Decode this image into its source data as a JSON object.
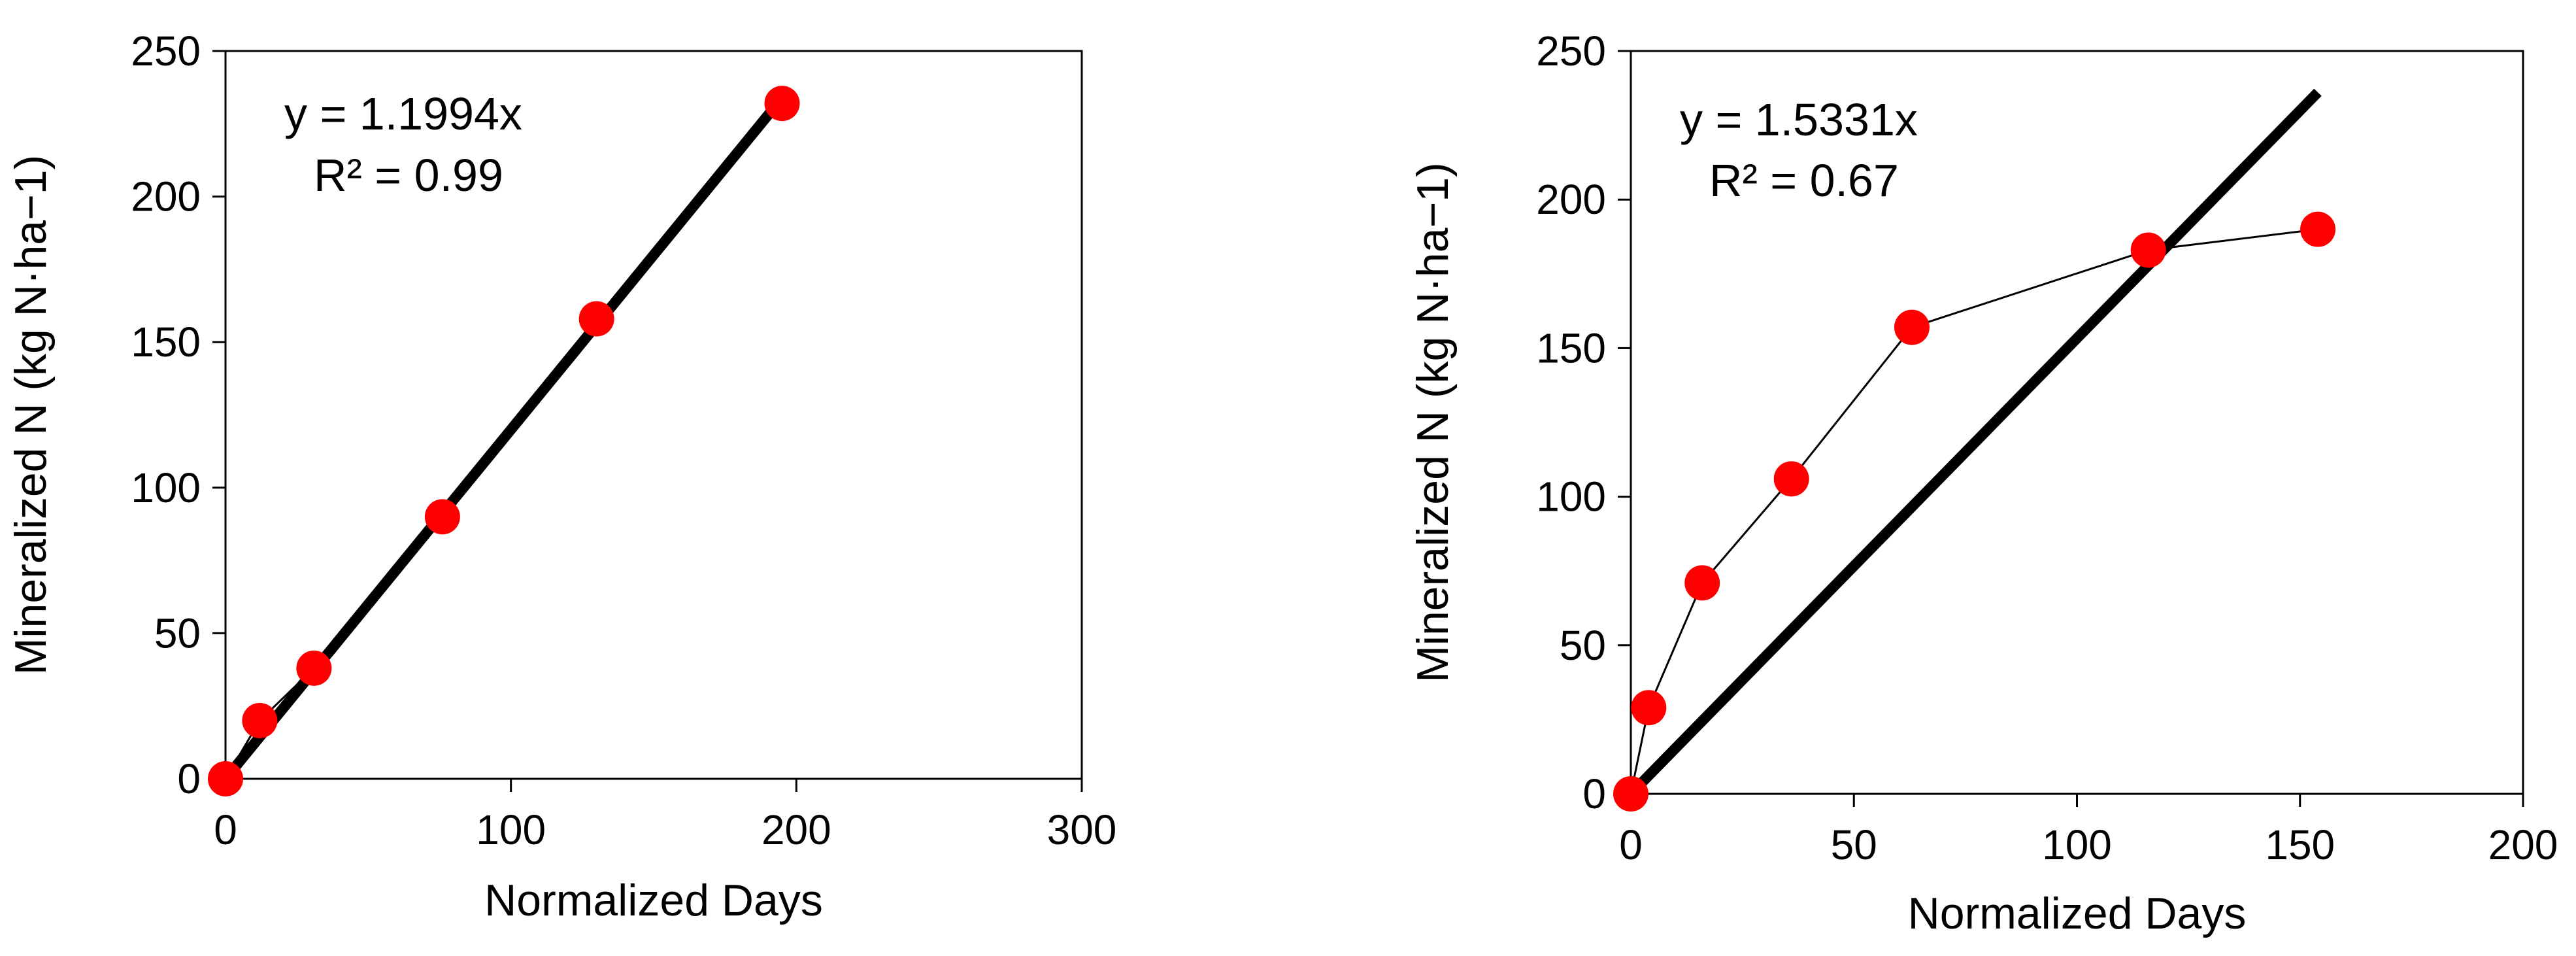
{
  "chart_data": [
    {
      "type": "scatter",
      "xlabel": "Normalized Days",
      "ylabel": "Mineralized N (kg N·ha−1)",
      "xlim": [
        0,
        300
      ],
      "ylim": [
        0,
        250
      ],
      "xticks": [
        "0",
        "100",
        "200",
        "300"
      ],
      "yticks": [
        "0",
        "50",
        "100",
        "150",
        "200",
        "250"
      ],
      "series": [
        {
          "x": [
            0,
            12,
            31,
            76,
            130,
            195
          ],
          "y": [
            0,
            20,
            38,
            90,
            158,
            232
          ],
          "color": "#ff0000"
        }
      ],
      "trendline": {
        "slope": 1.1994,
        "x_range": [
          0,
          195
        ],
        "color": "#000000"
      },
      "annotations": [
        "y = 1.1994x",
        "R² = 0.99"
      ],
      "grid": false
    },
    {
      "type": "scatter",
      "xlabel": "Normalized Days",
      "ylabel": "Mineralized N (kg N·ha−1)",
      "xlim": [
        0,
        200
      ],
      "ylim": [
        0,
        250
      ],
      "xticks": [
        "0",
        "50",
        "100",
        "150",
        "200"
      ],
      "yticks": [
        "0",
        "50",
        "100",
        "150",
        "200",
        "250"
      ],
      "series": [
        {
          "x": [
            0,
            4,
            16,
            36,
            63,
            116,
            154
          ],
          "y": [
            0,
            29,
            71,
            106,
            157,
            183,
            190
          ],
          "color": "#ff0000"
        }
      ],
      "trendline": {
        "slope": 1.5331,
        "x_range": [
          0,
          154
        ],
        "color": "#000000"
      },
      "annotations": [
        "y = 1.5331x",
        "R² = 0.67"
      ],
      "grid": false
    }
  ]
}
